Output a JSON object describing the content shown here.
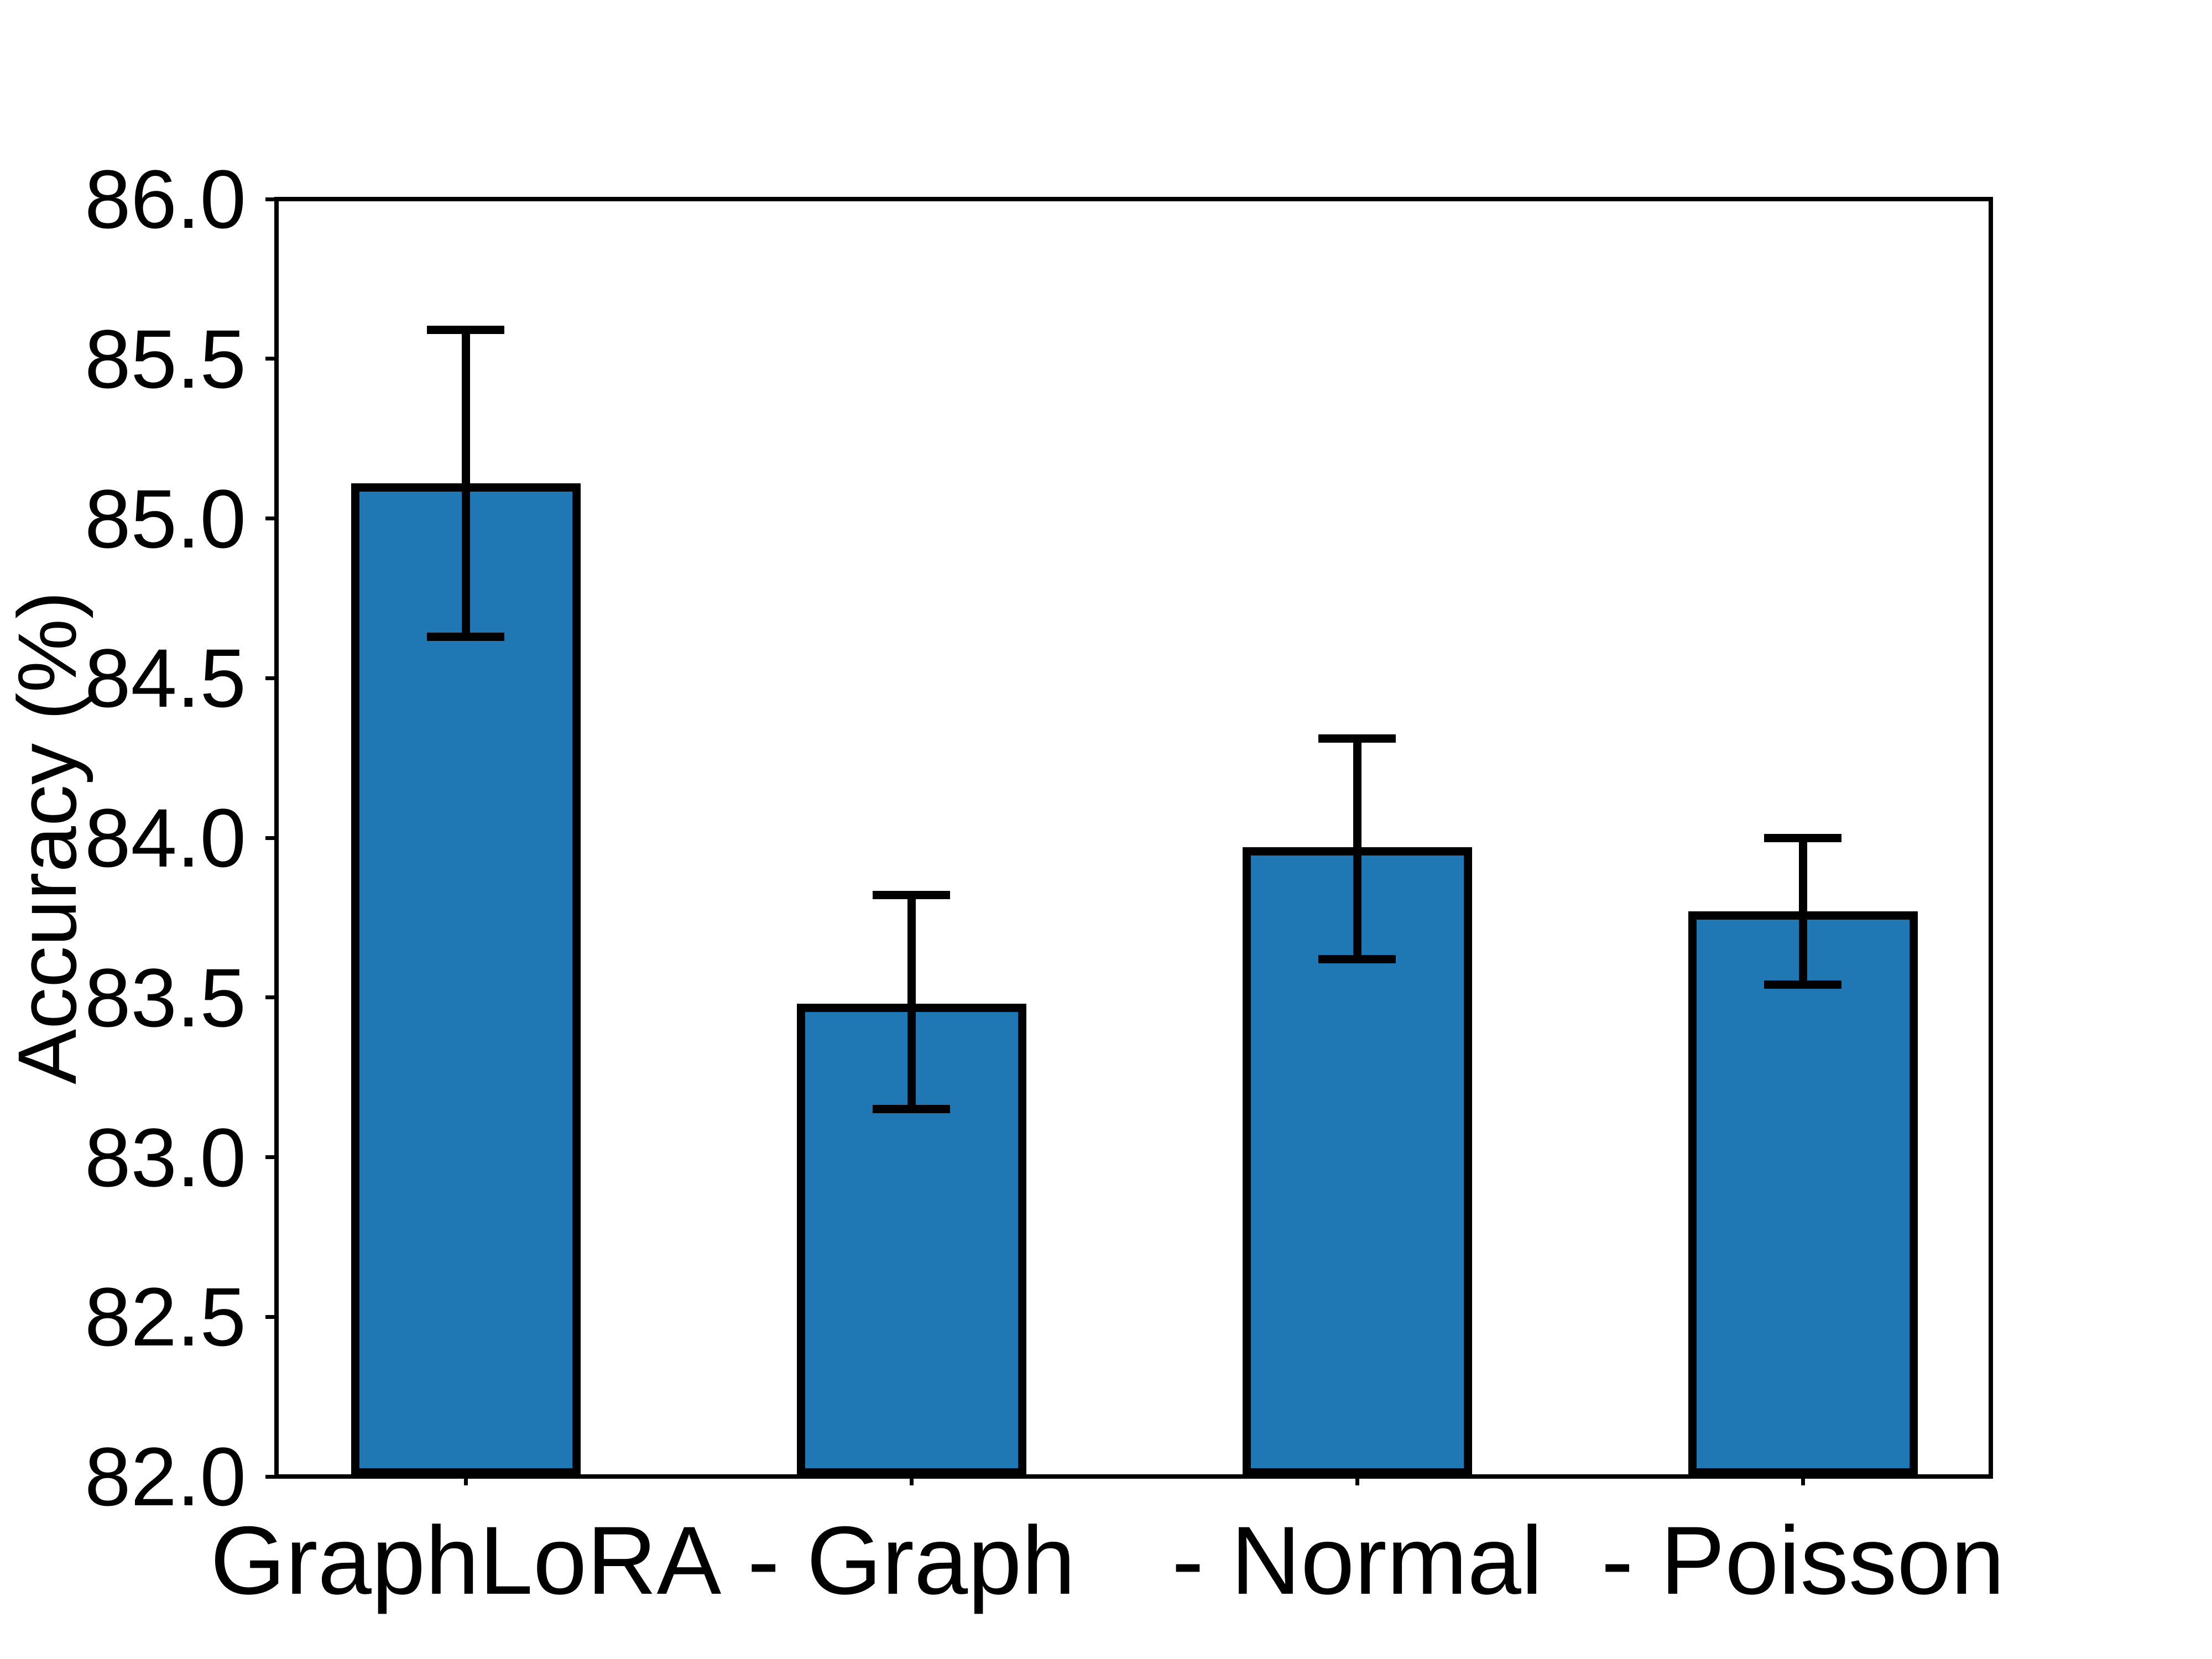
{
  "figure": {
    "background": "#ffffff"
  },
  "chart_data": {
    "type": "bar",
    "title": "",
    "xlabel": "",
    "ylabel": "Accuracy (%)",
    "categories": [
      "GraphLoRA",
      "- Graph",
      "- Normal",
      "- Poisson"
    ],
    "values": [
      85.11,
      83.48,
      83.97,
      83.77
    ],
    "error_low": [
      84.63,
      83.15,
      83.62,
      83.54
    ],
    "error_high": [
      85.59,
      83.82,
      84.31,
      84.0
    ],
    "ylim": [
      82.0,
      86.0
    ],
    "ytick_labels": [
      "82.0",
      "82.5",
      "83.0",
      "83.5",
      "84.0",
      "84.5",
      "85.0",
      "85.5",
      "86.0"
    ],
    "ytick_values": [
      82.0,
      82.5,
      83.0,
      83.5,
      84.0,
      84.5,
      85.0,
      85.5,
      86.0
    ],
    "grid": false,
    "legend": null,
    "bar_color": "#1f77b4",
    "bar_edge_color": "#000000",
    "error_color": "#000000"
  }
}
